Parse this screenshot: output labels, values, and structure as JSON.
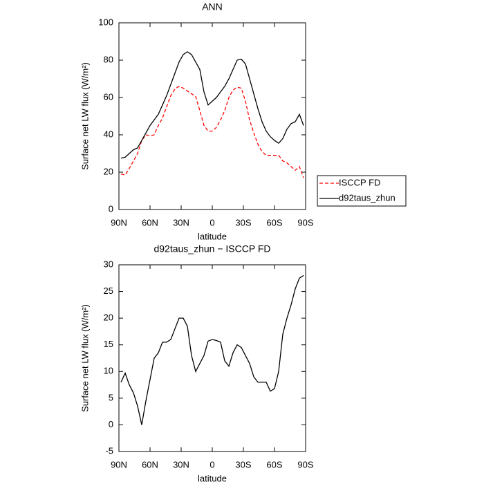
{
  "chart_data": [
    {
      "type": "line",
      "title": "ANN",
      "xlabel": "latitude",
      "ylabel": "Surface net LW flux (W/m²)",
      "x": [
        88,
        84,
        80,
        76,
        72,
        68,
        64,
        60,
        56,
        52,
        48,
        44,
        40,
        36,
        32,
        28,
        24,
        20,
        16,
        12,
        8,
        4,
        0,
        -4,
        -8,
        -12,
        -16,
        -20,
        -24,
        -28,
        -32,
        -36,
        -40,
        -44,
        -48,
        -52,
        -56,
        -60,
        -64,
        -68,
        -72,
        -76,
        -80,
        -84,
        -88
      ],
      "series": [
        {
          "name": "ISCCP FD",
          "color": "#ff0000",
          "dash": true,
          "values": [
            19,
            18.5,
            22,
            26,
            30,
            37,
            40,
            39.5,
            40,
            45,
            49,
            55,
            61,
            64.5,
            66,
            65,
            63.5,
            62,
            60.5,
            53,
            45,
            42,
            42,
            44,
            48,
            53,
            60,
            64,
            65.5,
            65,
            58,
            48,
            41,
            35,
            31,
            29,
            29,
            29,
            29,
            26,
            25,
            23,
            21,
            23,
            17
          ]
        },
        {
          "name": "d92taus_zhun",
          "color": "#000000",
          "dash": false,
          "values": [
            27.5,
            28,
            30,
            32,
            33,
            37,
            41,
            45,
            48,
            51,
            56,
            61,
            67,
            73,
            79,
            83,
            84.5,
            83,
            79,
            75,
            63,
            56,
            58,
            60,
            63,
            66,
            70,
            75,
            80,
            80.5,
            78,
            70,
            62,
            54,
            47,
            42,
            39,
            37,
            35.5,
            38,
            43,
            46,
            47,
            51,
            45
          ]
        }
      ],
      "xlim": [
        90,
        -90
      ],
      "xticks": [
        {
          "value": 90,
          "label": "90N"
        },
        {
          "value": 60,
          "label": "60N"
        },
        {
          "value": 30,
          "label": "30N"
        },
        0,
        {
          "value": -30,
          "label": "30S"
        },
        {
          "value": -60,
          "label": "60S"
        },
        {
          "value": -90,
          "label": "90S"
        }
      ],
      "ylim": [
        0,
        100
      ],
      "yticks": [
        0,
        20,
        40,
        60,
        80,
        100
      ],
      "legend": "right"
    },
    {
      "type": "line",
      "title": "d92taus_zhun − ISCCP FD",
      "xlabel": "latitude",
      "ylabel": "Surface net LW flux (W/m²)",
      "x": [
        88,
        84,
        80,
        76,
        72,
        68,
        64,
        60,
        56,
        52,
        48,
        44,
        40,
        36,
        32,
        28,
        24,
        20,
        16,
        12,
        8,
        4,
        0,
        -4,
        -8,
        -12,
        -16,
        -20,
        -24,
        -28,
        -32,
        -36,
        -40,
        -44,
        -48,
        -52,
        -56,
        -60,
        -64,
        -68,
        -72,
        -76,
        -80,
        -84,
        -88
      ],
      "series": [
        {
          "color": "#000000",
          "dash": false,
          "values": [
            8,
            9.7,
            7.5,
            6,
            3.5,
            0,
            4.5,
            8.5,
            12.5,
            13.5,
            15.5,
            15.5,
            16,
            18,
            20,
            20,
            18.5,
            13,
            10,
            11.5,
            13,
            15.7,
            16,
            15.8,
            15.5,
            12,
            11,
            13.5,
            15,
            14.5,
            13,
            11.5,
            9,
            8,
            8,
            8,
            6.3,
            6.8,
            10,
            17,
            20,
            22.5,
            25.5,
            27.5,
            28
          ]
        }
      ],
      "xlim": [
        90,
        -90
      ],
      "xticks": [
        {
          "value": 90,
          "label": "90N"
        },
        {
          "value": 60,
          "label": "60N"
        },
        {
          "value": 30,
          "label": "30N"
        },
        0,
        {
          "value": -30,
          "label": "30S"
        },
        {
          "value": -60,
          "label": "60S"
        },
        {
          "value": -90,
          "label": "90S"
        }
      ],
      "ylim": [
        -5,
        30
      ],
      "yticks": [
        -5,
        0,
        5,
        10,
        15,
        20,
        25,
        30
      ]
    }
  ]
}
